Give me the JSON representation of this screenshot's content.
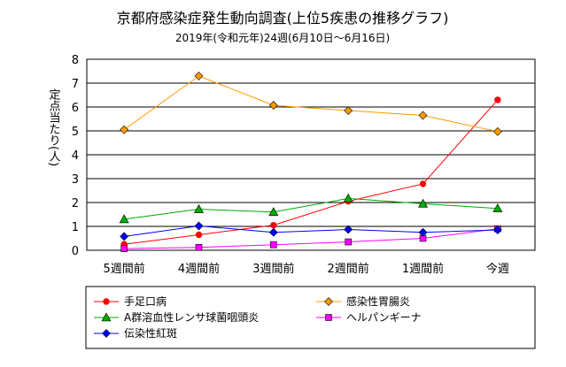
{
  "chart_data": {
    "type": "line",
    "title": "京都府感染症発生動向調査(上位5疾患の推移グラフ)",
    "subtitle": "2019年(令和元年)24週(6月10日〜6月16日)",
    "ylabel": "定点当たり(人)",
    "xlabel": "",
    "categories": [
      "5週間前",
      "4週間前",
      "3週間前",
      "2週間前",
      "1週間前",
      "今週"
    ],
    "ylim": [
      0,
      8
    ],
    "yticks": [
      "0",
      "1",
      "2",
      "3",
      "4",
      "5",
      "6",
      "7",
      "8"
    ],
    "grid": "horizontal",
    "legend_position": "bottom",
    "series": [
      {
        "name": "手足口病",
        "color": "#ff0000",
        "marker": "circle",
        "values": [
          0.25,
          0.65,
          1.05,
          2.05,
          2.78,
          6.3
        ]
      },
      {
        "name": "感染性胃腸炎",
        "color": "#ff9900",
        "marker": "diamond",
        "values": [
          5.05,
          7.3,
          6.07,
          5.85,
          5.65,
          4.97
        ]
      },
      {
        "name": "A群溶血性レンサ球菌咽頭炎",
        "color": "#00aa00",
        "marker": "triangle",
        "values": [
          1.3,
          1.72,
          1.6,
          2.17,
          1.95,
          1.75
        ]
      },
      {
        "name": "ヘルパンギーナ",
        "color": "#ff00ff",
        "marker": "square",
        "values": [
          0.07,
          0.12,
          0.23,
          0.35,
          0.5,
          0.9
        ]
      },
      {
        "name": "伝染性紅斑",
        "color": "#0000ff",
        "marker": "diamond",
        "values": [
          0.58,
          1.02,
          0.75,
          0.87,
          0.75,
          0.85
        ]
      }
    ]
  }
}
